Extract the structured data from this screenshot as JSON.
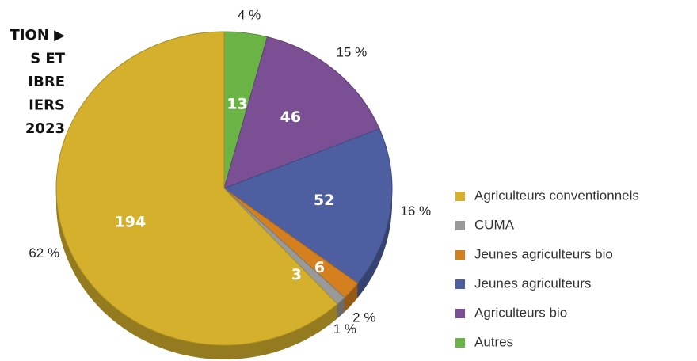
{
  "chart_data": {
    "type": "pie",
    "title_lines": [
      "TION ▶",
      "S ET",
      "IBRE",
      "IERS",
      "2023"
    ],
    "categories": [
      "Autres",
      "Agriculteurs bio",
      "Jeunes agriculteurs",
      "Jeunes agriculteurs bio",
      "CUMA",
      "Agriculteurs conventionnels"
    ],
    "values": [
      13,
      46,
      52,
      6,
      3,
      194
    ],
    "percents": [
      4,
      15,
      16,
      2,
      1,
      62
    ],
    "percent_labels": [
      "4 %",
      "15 %",
      "16 %",
      "2 %",
      "1 %",
      "62 %"
    ],
    "colors": [
      "#6ab445",
      "#7b4f93",
      "#4d5fa0",
      "#d4801f",
      "#999999",
      "#d4b02c"
    ],
    "legend_order": [
      5,
      4,
      3,
      2,
      1,
      0
    ],
    "legend": "right"
  }
}
